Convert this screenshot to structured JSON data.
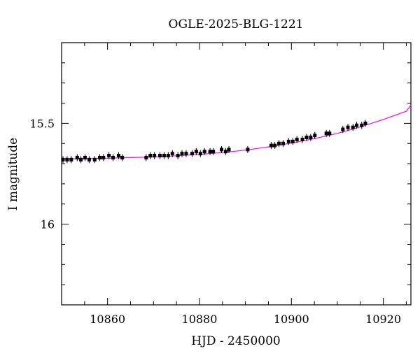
{
  "chart_data": {
    "type": "scatter",
    "title": "OGLE-2025-BLG-1221",
    "xlabel": "HJD - 2450000",
    "ylabel": "I magnitude",
    "xlim": [
      10850,
      10926
    ],
    "ylim": [
      16.4,
      15.1
    ],
    "y_inverted": true,
    "x_ticks": [
      10860,
      10880,
      10900,
      10920
    ],
    "y_ticks": [
      15.5,
      16
    ],
    "grid": false,
    "colors": {
      "points": "#000000",
      "model": "#ff00ff",
      "frame": "#000000"
    },
    "series": [
      {
        "type": "scatter",
        "x": [
          10850.3,
          10851.2,
          10852.1,
          10853.4,
          10854.2,
          10855.1,
          10856.0,
          10857.2,
          10858.3,
          10859.1,
          10860.3,
          10861.2,
          10862.4,
          10863.2,
          10868.4,
          10869.3,
          10870.2,
          10871.4,
          10872.3,
          10873.2,
          10874.1,
          10875.3,
          10876.2,
          10877.1,
          10878.4,
          10879.3,
          10880.2,
          10881.1,
          10882.3,
          10883.0,
          10884.8,
          10885.7,
          10886.4,
          10890.5,
          10895.6,
          10896.4,
          10897.3,
          10898.2,
          10899.4,
          10900.3,
          10901.2,
          10902.4,
          10903.3,
          10904.2,
          10905.1,
          10907.6,
          10908.3,
          10911.2,
          10912.3,
          10913.4,
          10914.2,
          10915.3,
          10916.1
        ],
        "y": [
          15.68,
          15.68,
          15.68,
          15.67,
          15.68,
          15.67,
          15.68,
          15.68,
          15.67,
          15.67,
          15.66,
          15.67,
          15.66,
          15.67,
          15.67,
          15.66,
          15.66,
          15.66,
          15.66,
          15.66,
          15.65,
          15.66,
          15.65,
          15.65,
          15.65,
          15.64,
          15.65,
          15.64,
          15.64,
          15.64,
          15.63,
          15.64,
          15.63,
          15.63,
          15.61,
          15.61,
          15.6,
          15.6,
          15.59,
          15.59,
          15.58,
          15.58,
          15.57,
          15.57,
          15.56,
          15.55,
          15.55,
          15.53,
          15.52,
          15.52,
          15.51,
          15.51,
          15.5
        ]
      },
      {
        "type": "line",
        "name": "",
        "x": [
          10850,
          10855,
          10860,
          10865,
          10870,
          10875,
          10880,
          10885,
          10890,
          10895,
          10900,
          10905,
          10910,
          10915,
          10920,
          10925,
          10926
        ],
        "y": [
          15.677,
          15.675,
          15.673,
          15.67,
          15.667,
          15.661,
          15.654,
          15.645,
          15.633,
          15.617,
          15.598,
          15.576,
          15.55,
          15.518,
          15.481,
          15.44,
          15.41
        ]
      }
    ]
  }
}
